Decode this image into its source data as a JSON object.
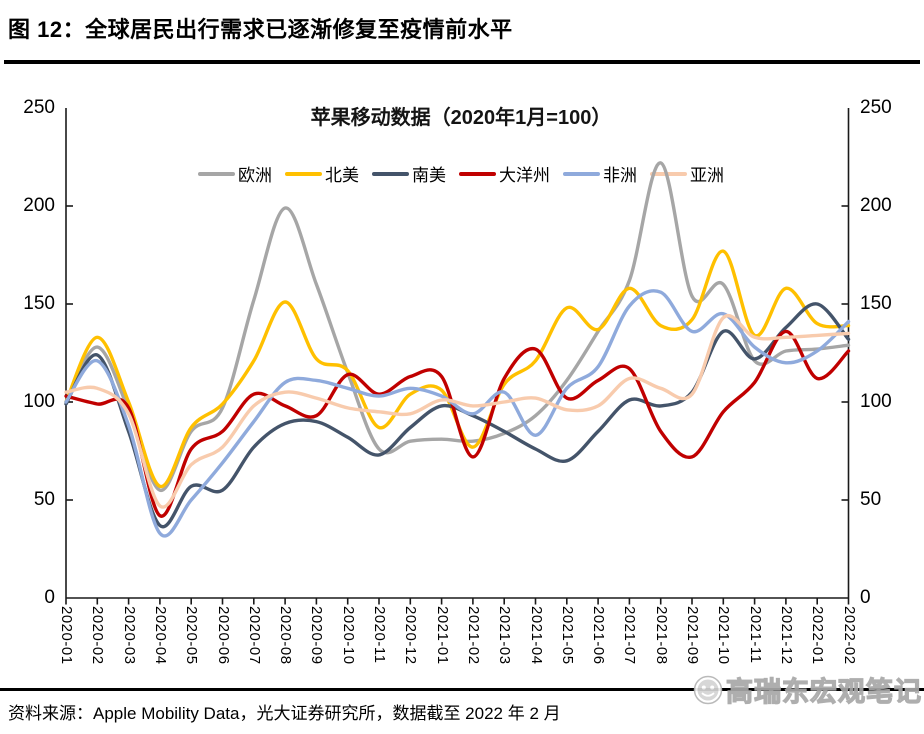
{
  "figure_title": "图 12：全球居民出行需求已逐渐修复至疫情前水平",
  "chart_data": {
    "type": "line",
    "title": "苹果移动数据（2020年1月=100）",
    "x": [
      "2020-01",
      "2020-02",
      "2020-03",
      "2020-04",
      "2020-05",
      "2020-06",
      "2020-07",
      "2020-08",
      "2020-09",
      "2020-10",
      "2020-11",
      "2020-12",
      "2021-01",
      "2021-02",
      "2021-03",
      "2021-04",
      "2021-05",
      "2021-06",
      "2021-07",
      "2021-08",
      "2021-09",
      "2021-10",
      "2021-11",
      "2021-12",
      "2022-01",
      "2022-02"
    ],
    "series": [
      {
        "name": "欧洲",
        "color": "#A6A6A6",
        "values": [
          100,
          128,
          96,
          55,
          85,
          97,
          152,
          199,
          160,
          115,
          76,
          80,
          81,
          80,
          84,
          93,
          111,
          136,
          162,
          222,
          154,
          160,
          121,
          126,
          127,
          129
        ]
      },
      {
        "name": "北美",
        "color": "#FFC000",
        "values": [
          100,
          133,
          100,
          57,
          87,
          99,
          121,
          151,
          122,
          116,
          87,
          104,
          106,
          77,
          109,
          121,
          148,
          137,
          158,
          139,
          142,
          177,
          134,
          158,
          140,
          139
        ]
      },
      {
        "name": "南美",
        "color": "#44546A",
        "values": [
          99,
          124,
          85,
          37,
          57,
          55,
          77,
          89,
          90,
          82,
          73,
          87,
          98,
          93,
          85,
          76,
          70,
          85,
          101,
          98,
          105,
          136,
          122,
          138,
          150,
          132
        ]
      },
      {
        "name": "大洋州",
        "color": "#C00000",
        "values": [
          103,
          99,
          97,
          42,
          76,
          85,
          104,
          98,
          93,
          114,
          104,
          113,
          113,
          72,
          112,
          127,
          102,
          111,
          117,
          85,
          72,
          95,
          110,
          136,
          112,
          126
        ]
      },
      {
        "name": "非洲",
        "color": "#8FAADC",
        "values": [
          100,
          121,
          88,
          33,
          50,
          69,
          90,
          110,
          111,
          107,
          103,
          107,
          103,
          94,
          105,
          83,
          107,
          118,
          149,
          156,
          136,
          145,
          128,
          120,
          126,
          141
        ]
      },
      {
        "name": "亚洲",
        "color": "#F8CBAD",
        "values": [
          105,
          107,
          94,
          47,
          68,
          77,
          98,
          105,
          102,
          97,
          95,
          94,
          101,
          98,
          100,
          102,
          96,
          98,
          112,
          107,
          104,
          143,
          133,
          133,
          134,
          135
        ]
      }
    ],
    "ylim": [
      0,
      250
    ],
    "y_ticks": [
      0,
      50,
      100,
      150,
      200,
      250
    ],
    "dual_y_axis": true,
    "grid": false,
    "legend_position": "top",
    "line_style": "smooth",
    "axis_color": "#1a1a1a"
  },
  "source_note": "资料来源：Apple Mobility Data，光大证券研究所，数据截至 2022 年 2 月",
  "watermark": {
    "text": "高瑞东宏观笔记",
    "icon": "wechat-face-icon"
  }
}
